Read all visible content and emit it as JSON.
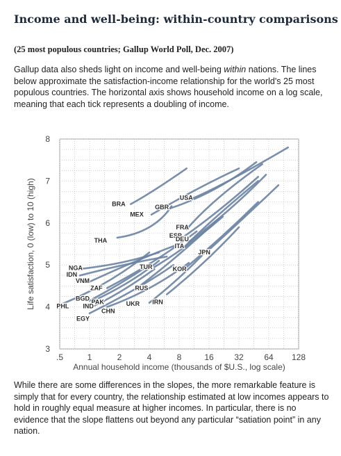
{
  "header": {
    "title": "Income and well-being: within-country comparisons",
    "subtitle": "(25 most populous countries; Gallup World Poll, Dec. 2007)"
  },
  "intro": {
    "before": "Gallup data also sheds light on income and well-being ",
    "emphasis": "within",
    "after": " nations. The lines below approximate the satisfaction-income relationship for the world's 25 most populous countries. The horizontal axis shows household income on a log scale, meaning that each tick represents a doubling of income."
  },
  "outro": {
    "text": "While there are some differences in the slopes, the more remarkable feature is simply that for every country, the relationship estimated at low incomes appears to hold in roughly equal measure at higher incomes. In particular, there is no evidence that the slope flattens out beyond any particular “satiation point” in any nation."
  },
  "chart_data": {
    "type": "line",
    "xlabel": "Annual household income (thousands of $U.S., log scale)",
    "ylabel": "Life satisfaction, 0 (low) to 10 (high)",
    "x_scale": "log2",
    "xlim": [
      0.5,
      128
    ],
    "ylim": [
      3,
      8
    ],
    "x_ticks": [
      0.5,
      1,
      2,
      4,
      8,
      16,
      32,
      64,
      128
    ],
    "x_tick_labels": [
      ".5",
      "1",
      "2",
      "4",
      "8",
      "16",
      "32",
      "64",
      "128"
    ],
    "y_ticks": [
      3,
      4,
      5,
      6,
      7,
      8
    ],
    "y_tick_labels": [
      "3",
      "4",
      "5",
      "6",
      "7",
      "8"
    ],
    "grid": true,
    "line_color": "#6b83a3",
    "series": [
      {
        "name": "BRA",
        "x": [
          2.6,
          4.6,
          9.5
        ],
        "y": [
          6.45,
          6.8,
          7.3
        ]
      },
      {
        "name": "USA",
        "x": [
          10.0,
          25,
          100
        ],
        "y": [
          6.55,
          7.0,
          7.8
        ]
      },
      {
        "name": "GBR",
        "x": [
          6.5,
          18,
          48
        ],
        "y": [
          6.35,
          6.8,
          7.45
        ]
      },
      {
        "name": "MEX",
        "x": [
          4.2,
          12,
          32
        ],
        "y": [
          6.2,
          6.8,
          7.3
        ]
      },
      {
        "name": "THA",
        "x": [
          1.9,
          4.0,
          6.7
        ],
        "y": [
          5.65,
          5.9,
          6.4
        ]
      },
      {
        "name": "FRA",
        "x": [
          9.5,
          20,
          55
        ],
        "y": [
          5.85,
          6.6,
          7.4
        ]
      },
      {
        "name": "ESP",
        "x": [
          8.6,
          20,
          50
        ],
        "y": [
          5.65,
          6.3,
          7.1
        ]
      },
      {
        "name": "DEU",
        "x": [
          10.0,
          25,
          60
        ],
        "y": [
          5.55,
          6.3,
          7.15
        ]
      },
      {
        "name": "ITA",
        "x": [
          8.8,
          18,
          50
        ],
        "y": [
          5.4,
          6.1,
          7.0
        ]
      },
      {
        "name": "JPN",
        "x": [
          15,
          35,
          80
        ],
        "y": [
          5.3,
          6.1,
          6.9
        ]
      },
      {
        "name": "NGA",
        "x": [
          0.75,
          2.0,
          5.0
        ],
        "y": [
          4.9,
          5.05,
          5.3
        ]
      },
      {
        "name": "IDN",
        "x": [
          0.8,
          2.2,
          6.0
        ],
        "y": [
          4.75,
          5.0,
          5.2
        ]
      },
      {
        "name": "VNM",
        "x": [
          1.0,
          3.0,
          8.0
        ],
        "y": [
          4.6,
          5.1,
          5.5
        ]
      },
      {
        "name": "TUR",
        "x": [
          4.5,
          10,
          22
        ],
        "y": [
          4.95,
          5.5,
          6.15
        ]
      },
      {
        "name": "KOR",
        "x": [
          9.5,
          22,
          50
        ],
        "y": [
          4.95,
          5.7,
          6.5
        ]
      },
      {
        "name": "ZAF",
        "x": [
          1.5,
          4.5,
          12
        ],
        "y": [
          4.45,
          5.1,
          5.8
        ]
      },
      {
        "name": "RUS",
        "x": [
          3.0,
          7.5,
          20
        ],
        "y": [
          4.45,
          5.2,
          6.1
        ]
      },
      {
        "name": "BGD",
        "x": [
          1.0,
          2.0,
          4.0
        ],
        "y": [
          4.15,
          4.55,
          5.0
        ]
      },
      {
        "name": "PAK",
        "x": [
          1.1,
          2.5,
          5.0
        ],
        "y": [
          4.15,
          4.6,
          5.1
        ]
      },
      {
        "name": "IND",
        "x": [
          1.0,
          2.0,
          4.5
        ],
        "y": [
          3.98,
          4.35,
          4.9
        ]
      },
      {
        "name": "PHL",
        "x": [
          0.5,
          1.5,
          4.0
        ],
        "y": [
          4.05,
          4.6,
          5.3
        ]
      },
      {
        "name": "CHN",
        "x": [
          1.5,
          4.0,
          10
        ],
        "y": [
          4.0,
          4.45,
          5.05
        ]
      },
      {
        "name": "UKR",
        "x": [
          4.0,
          8.0,
          16
        ],
        "y": [
          4.1,
          4.7,
          5.4
        ]
      },
      {
        "name": "IRN",
        "x": [
          6.0,
          14,
          32
        ],
        "y": [
          4.3,
          5.05,
          5.9
        ]
      },
      {
        "name": "EGY",
        "x": [
          1.0,
          3.0,
          7.0
        ],
        "y": [
          3.85,
          4.45,
          5.0
        ]
      }
    ],
    "labels": [
      {
        "name": "BRA",
        "x": 2.3,
        "y": 6.45
      },
      {
        "name": "USA",
        "x": 11.0,
        "y": 6.6
      },
      {
        "name": "GBR",
        "x": 6.3,
        "y": 6.38
      },
      {
        "name": "MEX",
        "x": 3.5,
        "y": 6.2
      },
      {
        "name": "THA",
        "x": 1.5,
        "y": 5.58
      },
      {
        "name": "FRA",
        "x": 10.0,
        "y": 5.9
      },
      {
        "name": "ESP",
        "x": 8.5,
        "y": 5.7
      },
      {
        "name": "DEU",
        "x": 10.0,
        "y": 5.62
      },
      {
        "name": "ITA",
        "x": 9.0,
        "y": 5.45
      },
      {
        "name": "JPN",
        "x": 16.5,
        "y": 5.3
      },
      {
        "name": "NGA",
        "x": 0.85,
        "y": 4.93
      },
      {
        "name": "IDN",
        "x": 0.75,
        "y": 4.77
      },
      {
        "name": "VNM",
        "x": 1.0,
        "y": 4.62
      },
      {
        "name": "TUR",
        "x": 4.3,
        "y": 4.95
      },
      {
        "name": "KOR",
        "x": 9.5,
        "y": 4.9
      },
      {
        "name": "ZAF",
        "x": 1.35,
        "y": 4.45
      },
      {
        "name": "RUS",
        "x": 3.9,
        "y": 4.45
      },
      {
        "name": "BGD",
        "x": 1.0,
        "y": 4.2
      },
      {
        "name": "PAK",
        "x": 1.4,
        "y": 4.12
      },
      {
        "name": "IND",
        "x": 1.1,
        "y": 4.02
      },
      {
        "name": "PHL",
        "x": 0.62,
        "y": 4.02
      },
      {
        "name": "CHN",
        "x": 1.8,
        "y": 3.9
      },
      {
        "name": "UKR",
        "x": 3.2,
        "y": 4.08
      },
      {
        "name": "IRN",
        "x": 5.5,
        "y": 4.12
      },
      {
        "name": "EGY",
        "x": 1.0,
        "y": 3.72
      }
    ]
  }
}
